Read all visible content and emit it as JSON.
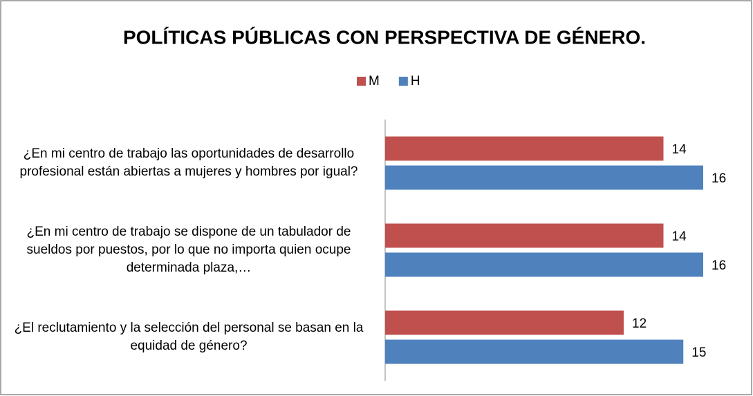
{
  "chart_data": {
    "type": "barh",
    "title": "POLÍTICAS PÚBLICAS CON PERSPECTIVA DE GÉNERO.",
    "categories": [
      "¿En mi centro de trabajo las oportunidades de desarrollo profesional están abiertas a mujeres y hombres por igual?",
      "¿En mi centro de trabajo se dispone de un tabulador de sueldos por puestos, por lo que no importa quien ocupe determinada plaza,…",
      "¿El reclutamiento y la selección del personal se basan en la equidad de género?"
    ],
    "series": [
      {
        "name": "M",
        "color": "#c0504d",
        "values": [
          14,
          14,
          12
        ]
      },
      {
        "name": "H",
        "color": "#4f81bd",
        "values": [
          16,
          16,
          15
        ]
      }
    ],
    "xlim": [
      0,
      18
    ],
    "legend": "top"
  }
}
